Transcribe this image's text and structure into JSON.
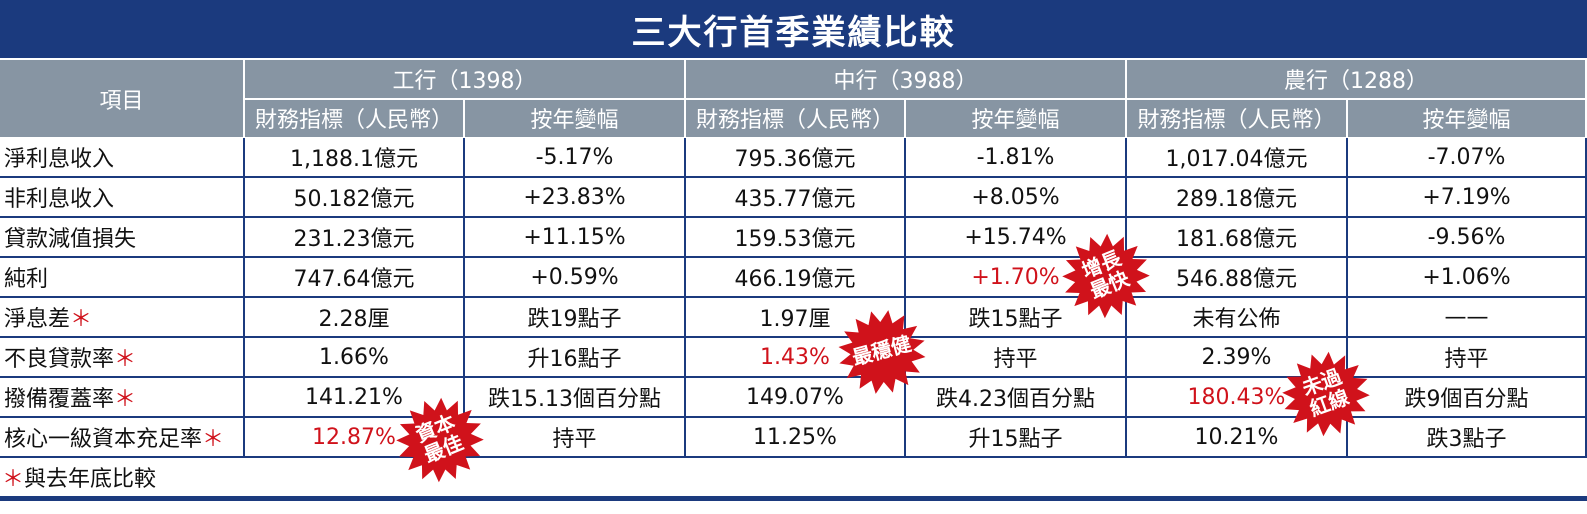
{
  "header": {
    "title": "三大行首季業績比較",
    "item_label": "項目",
    "banks": [
      {
        "name": "工行（1398）",
        "subheads": [
          "財務指標（人民幣）",
          "按年變幅"
        ]
      },
      {
        "name": "中行（3988）",
        "subheads": [
          "財務指標（人民幣）",
          "按年變幅"
        ]
      },
      {
        "name": "農行（1288）",
        "subheads": [
          "財務指標（人民幣）",
          "按年變幅"
        ]
      }
    ]
  },
  "table": {
    "highlight_color": "#d0121b",
    "rows": [
      {
        "label": "淨利息收入",
        "cells": [
          "1,188.1億元",
          "-5.17%",
          "795.36億元",
          "-1.81%",
          "1,017.04億元",
          "-7.07%"
        ],
        "highlight": []
      },
      {
        "label": "非利息收入",
        "cells": [
          "50.182億元",
          "+23.83%",
          "435.77億元",
          "+8.05%",
          "289.18億元",
          "+7.19%"
        ],
        "highlight": []
      },
      {
        "label": "貸款減值損失",
        "cells": [
          "231.23億元",
          "+11.15%",
          "159.53億元",
          "+15.74%",
          "181.68億元",
          "-9.56%"
        ],
        "highlight": []
      },
      {
        "label": "純利",
        "cells": [
          "747.64億元",
          "+0.59%",
          "466.19億元",
          "+1.70%",
          "546.88億元",
          "+1.06%"
        ],
        "highlight": [
          3
        ]
      },
      {
        "label": "淨息差",
        "note": "＊",
        "cells": [
          "2.28厘",
          "跌19點子",
          "1.97厘",
          "跌15點子",
          "未有公佈",
          "——"
        ],
        "highlight": []
      },
      {
        "label": "不良貸款率",
        "note": "＊",
        "cells": [
          "1.66%",
          "升16點子",
          "1.43%",
          "持平",
          "2.39%",
          "持平"
        ],
        "highlight": [
          2
        ]
      },
      {
        "label": "撥備覆蓋率",
        "note": "＊",
        "cells": [
          "141.21%",
          "跌15.13個百分點",
          "149.07%",
          "跌4.23個百分點",
          "180.43%",
          "跌9個百分點"
        ],
        "highlight": [
          4
        ]
      },
      {
        "label": "核心一級資本充足率",
        "note": "＊",
        "cells": [
          "12.87%",
          "持平",
          "11.25%",
          "升15點子",
          "10.21%",
          "跌3點子"
        ],
        "highlight": [
          0
        ]
      }
    ]
  },
  "footnote": {
    "mark": "＊",
    "text": "與去年底比較"
  },
  "badges": [
    {
      "lines": [
        "增長",
        "最快"
      ],
      "color": "#d0121b"
    },
    {
      "lines": [
        "最穩健"
      ],
      "color": "#d0121b"
    },
    {
      "lines": [
        "未過",
        "紅線"
      ],
      "color": "#d0121b"
    },
    {
      "lines": [
        "資本",
        "最佳"
      ],
      "color": "#d0121b"
    }
  ]
}
